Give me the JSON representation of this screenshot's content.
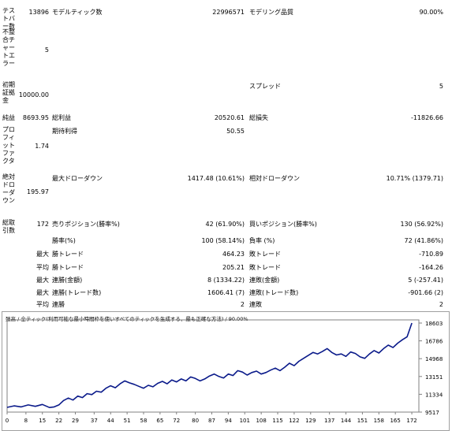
{
  "report": {
    "rows": [
      {
        "label": "テストバー数",
        "value": "13896",
        "name_mid": "モデルティック数",
        "value_mid": "22996571",
        "name_right": "モデリング品質",
        "value_right": "90.00%"
      },
      {
        "label": "不整合チャートエラー",
        "value": "5"
      },
      {
        "label": "初期証拠金",
        "value": "10000.00",
        "name_right": "スプレッド",
        "value_right": "5"
      },
      {
        "label": "純益",
        "value": "8693.95",
        "name_mid": "総利益",
        "value_mid": "20520.61",
        "name_right": "総損失",
        "value_right": "-11826.66"
      },
      {
        "label": "プロフィットファクタ",
        "value": "1.74",
        "name_mid": "期待利得",
        "value_mid": "50.55"
      },
      {
        "label": "絶対ドローダウン",
        "value": "195.97",
        "name_mid": "最大ドローダウン",
        "value_mid": "1417.48 (10.61%)",
        "name_right": "相対ドローダウン",
        "value_right": "10.71% (1379.71)"
      },
      {
        "label": "総取引数",
        "value": "172",
        "name_mid": "売りポジション(勝率%)",
        "value_mid": "42 (61.90%)",
        "name_right": "買いポジション(勝率%)",
        "value_right": "130 (56.92%)"
      },
      {
        "label": "",
        "value": "",
        "name_mid": "勝率(%)",
        "value_mid": "100 (58.14%)",
        "name_right": "負率 (%)",
        "value_right": "72 (41.86%)"
      },
      {
        "label": "",
        "value": "最大",
        "name_mid": "勝トレード",
        "value_mid": "464.23",
        "name_right": "敗トレード",
        "value_right": "-710.89"
      },
      {
        "label": "",
        "value": "平均",
        "name_mid": "勝トレード",
        "value_mid": "205.21",
        "name_right": "敗トレード",
        "value_right": "-164.26"
      },
      {
        "label": "",
        "value": "最大",
        "name_mid": "連勝(金額)",
        "value_mid": "8 (1334.22)",
        "name_right": "連敗(金額)",
        "value_right": "5 (-257.41)"
      },
      {
        "label": "",
        "value": "最大",
        "name_mid": "連勝(トレード数)",
        "value_mid": "1606.41 (7)",
        "name_right": "連敗(トレード数)",
        "value_right": "-901.66 (2)"
      },
      {
        "label": "",
        "value": "平均",
        "name_mid": "連勝",
        "value_mid": "2",
        "name_right": "連敗",
        "value_right": "2"
      }
    ]
  },
  "chart_data": {
    "type": "line",
    "title": "残高 / 全ティック(利用可能な最小時間枠を使いすべてのティックを生成する、最も正確な方法) / 90.00%",
    "x_ticks": [
      0,
      8,
      15,
      22,
      29,
      37,
      44,
      51,
      58,
      65,
      72,
      80,
      87,
      94,
      101,
      108,
      115,
      122,
      129,
      137,
      144,
      151,
      158,
      165,
      172
    ],
    "y_ticks": [
      9517,
      11334,
      13151,
      14968,
      16786,
      18603
    ],
    "ylim": [
      9517,
      18603
    ],
    "xlim": [
      0,
      175
    ],
    "line_color": "#0a1a8a",
    "series": [
      {
        "x": [
          0,
          3,
          6,
          9,
          12,
          15,
          18,
          20,
          22,
          24,
          26,
          28,
          30,
          32,
          34,
          36,
          38,
          40,
          42,
          44,
          46,
          48,
          50,
          52,
          54,
          56,
          58,
          60,
          62,
          64,
          66,
          68,
          70,
          72,
          74,
          76,
          78,
          80,
          82,
          84,
          86,
          88,
          90,
          92,
          94,
          96,
          98,
          100,
          102,
          104,
          106,
          108,
          110,
          112,
          114,
          116,
          118,
          120,
          122,
          124,
          126,
          128,
          130,
          132,
          134,
          136,
          138,
          140,
          142,
          144,
          146,
          148,
          150,
          152,
          154,
          156,
          158,
          160,
          162,
          164,
          166,
          168,
          170,
          172
        ],
        "y": [
          10000,
          10150,
          10050,
          10250,
          10100,
          10300,
          9980,
          10050,
          10250,
          10700,
          10950,
          10750,
          11150,
          11000,
          11400,
          11300,
          11650,
          11550,
          11950,
          12200,
          12000,
          12400,
          12700,
          12500,
          12350,
          12150,
          11950,
          12250,
          12100,
          12450,
          12650,
          12400,
          12800,
          12600,
          12900,
          12700,
          13100,
          12950,
          12700,
          12900,
          13200,
          13400,
          13150,
          13000,
          13400,
          13250,
          13750,
          13600,
          13300,
          13550,
          13700,
          13400,
          13550,
          13800,
          14000,
          13750,
          14100,
          14500,
          14250,
          14700,
          15000,
          15300,
          15600,
          15450,
          15700,
          16000,
          15600,
          15350,
          15450,
          15200,
          15650,
          15500,
          15150,
          15000,
          15450,
          15800,
          15550,
          16000,
          16350,
          16100,
          16550,
          16900,
          17200,
          18603
        ]
      }
    ]
  }
}
